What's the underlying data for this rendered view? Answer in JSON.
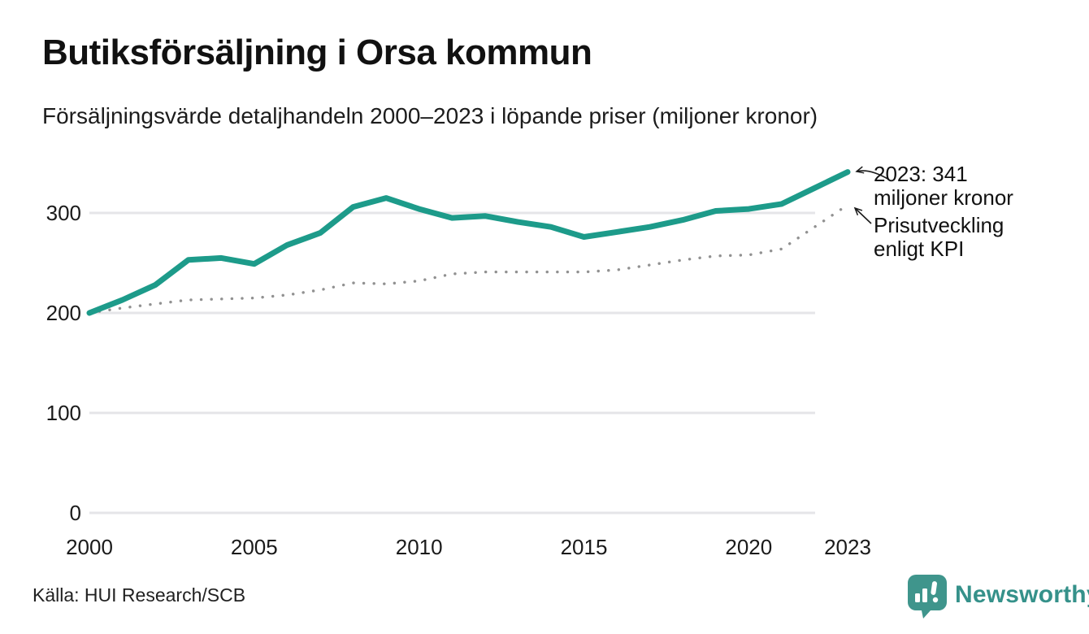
{
  "header": {
    "title": "Butiksförsäljning i Orsa kommun",
    "subtitle": "Försäljningsvärde detaljhandeln 2000–2023 i löpande priser (miljoner kronor)"
  },
  "chart_data": {
    "type": "line",
    "title": "Butiksförsäljning i Orsa kommun",
    "subtitle": "Försäljningsvärde detaljhandeln 2000–2023 i löpande priser (miljoner kronor)",
    "x": [
      2000,
      2001,
      2002,
      2003,
      2004,
      2005,
      2006,
      2007,
      2008,
      2009,
      2010,
      2011,
      2012,
      2013,
      2014,
      2015,
      2016,
      2017,
      2018,
      2019,
      2020,
      2021,
      2022,
      2023
    ],
    "series": [
      {
        "name": "Butiksförsäljning i löpande priser (miljoner kronor)",
        "style": "solid",
        "color": "#1d9b8a",
        "values": [
          200,
          213,
          228,
          253,
          255,
          249,
          268,
          280,
          306,
          315,
          304,
          295,
          297,
          291,
          286,
          276,
          281,
          286,
          293,
          302,
          304,
          309,
          325,
          341
        ]
      },
      {
        "name": "Prisutveckling enligt KPI",
        "style": "dotted",
        "color": "#919191",
        "values": [
          200,
          205,
          209,
          213,
          214,
          215,
          218,
          223,
          230,
          229,
          232,
          239,
          241,
          241,
          241,
          241,
          243,
          248,
          253,
          257,
          258,
          264,
          286,
          308
        ]
      }
    ],
    "xticks": [
      2000,
      2005,
      2010,
      2015,
      2020,
      2023
    ],
    "yticks": [
      0,
      100,
      200,
      300
    ],
    "xlim": [
      2000,
      2023
    ],
    "ylim": [
      0,
      360
    ],
    "grid": "horizontal",
    "grid_color": "#e5e5e8",
    "legend_position": "none",
    "final_value_2023": 341
  },
  "annotations": {
    "sales": {
      "line1": "2023: 341",
      "line2": "miljoner kronor"
    },
    "kpi": {
      "line1": "Prisutveckling",
      "line2": "enligt KPI"
    }
  },
  "footer": {
    "source": "Källa: HUI Research/SCB",
    "brand": "Newsworthy"
  },
  "colors": {
    "accent": "#1d9b8a",
    "kpi_dots": "#919191",
    "brand": "#3f958c",
    "arrow": "#1a1a1a"
  }
}
